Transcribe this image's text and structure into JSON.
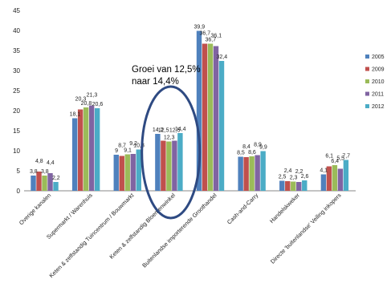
{
  "chart_data": {
    "type": "bar",
    "title": "",
    "xlabel": "",
    "ylabel": "",
    "ylim": [
      0,
      45
    ],
    "yticks": [
      0,
      5,
      10,
      15,
      20,
      25,
      30,
      35,
      40,
      45
    ],
    "grid": false,
    "legend_position": "right",
    "categories": [
      "Overige kanalen",
      "Supermarkt / Warenhuis",
      "Keten & zelfstandig Tuincentrum / Bouwmarkt",
      "Keten & zelfstandig Bloemenwinkel",
      "Buitenlandse importerende Groothandel",
      "Cash-and-Carry",
      "Handelskweker",
      "Directe 'buitenlandse' Veiling inkopers"
    ],
    "series": [
      {
        "name": "2005",
        "color": "#4f81bd",
        "values": [
          3.8,
          18.1,
          9.0,
          14.2,
          39.9,
          8.5,
          2.5,
          4.1
        ]
      },
      {
        "name": "2009",
        "color": "#c0504d",
        "values": [
          4.8,
          20.3,
          8.7,
          12.5,
          36.7,
          8.4,
          2.4,
          6.1
        ]
      },
      {
        "name": "2010",
        "color": "#9bbb59",
        "values": [
          3.8,
          20.8,
          9.1,
          12.3,
          36.7,
          8.6,
          2.3,
          6.4
        ]
      },
      {
        "name": "2011",
        "color": "#8064a2",
        "values": [
          4.4,
          21.3,
          9.2,
          12.5,
          36.1,
          8.9,
          2.2,
          5.5
        ]
      },
      {
        "name": "2012",
        "color": "#4bacc6",
        "values": [
          2.2,
          20.6,
          10.3,
          14.4,
          32.4,
          9.9,
          2.6,
          7.7
        ]
      }
    ],
    "data_labels": [
      [
        "3,8",
        "18,1",
        "9",
        "14,2",
        "39,9",
        "8,5",
        "2,5",
        "4,1"
      ],
      [
        "4,8",
        "20,3",
        "8,7",
        "12,5",
        "36,7",
        "8,4",
        "2,4",
        "6,1"
      ],
      [
        "3,8",
        "20,8",
        "9,1",
        "12,3",
        "36,7",
        "8,6",
        "2,3",
        "6,4"
      ],
      [
        "4,4",
        "21,3",
        "9,2",
        "12,5",
        "36,1",
        "8,9",
        "2,2",
        "5,5"
      ],
      [
        "2,2",
        "20,6",
        "10,3",
        "14,4",
        "32,4",
        "9,9",
        "2,6",
        "7,7"
      ]
    ],
    "annotation": {
      "text_line1": "Groei van 12,5%",
      "text_line2": "naar 14,4%",
      "highlight_category": "Keten & zelfstandig Bloemenwinkel",
      "ellipse_color": "#2e4a82"
    }
  }
}
